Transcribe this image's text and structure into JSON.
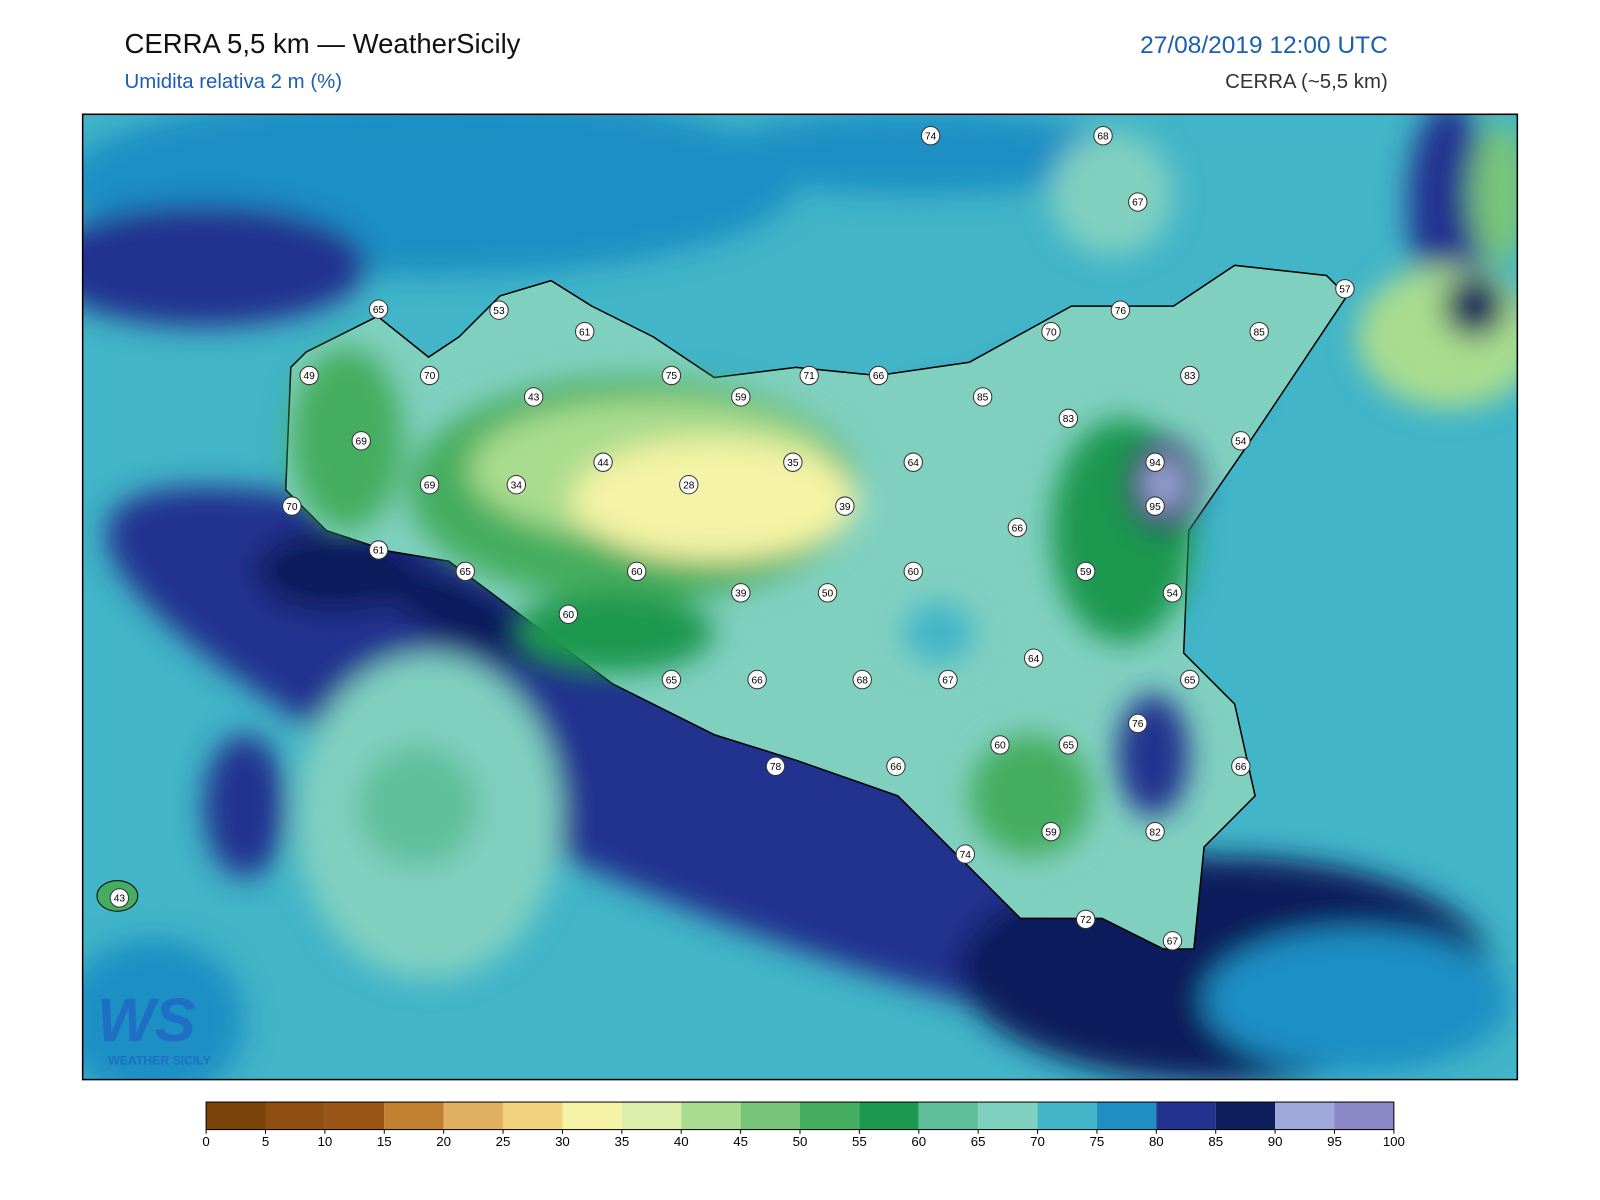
{
  "header": {
    "title": "CERRA 5,5 km — WeatherSicily",
    "subtitle": "Umidita relativa 2 m (%)",
    "datetime": "27/08/2019 12:00 UTC",
    "model": "CERRA (~5,5 km)"
  },
  "logo": {
    "mark": "WS",
    "text": "WEATHER SICILY"
  },
  "stations": [
    74,
    68,
    67,
    65,
    53,
    61,
    57,
    76,
    70,
    85,
    49,
    70,
    75,
    71,
    66,
    59,
    85,
    83,
    83,
    43,
    69,
    54,
    44,
    35,
    64,
    94,
    69,
    34,
    28,
    39,
    95,
    70,
    66,
    61,
    65,
    60,
    60,
    59,
    39,
    50,
    54,
    60,
    64,
    65,
    66,
    68,
    67,
    65,
    76,
    60,
    65,
    78,
    66,
    66,
    59,
    82,
    74,
    43,
    72,
    67
  ],
  "colorbar": {
    "ticks": [
      0,
      5,
      10,
      15,
      20,
      25,
      30,
      35,
      40,
      45,
      50,
      55,
      60,
      65,
      70,
      75,
      80,
      85,
      90,
      95,
      100
    ],
    "colors": [
      "#7b420a",
      "#8f4f12",
      "#9a5516",
      "#c08030",
      "#e0b060",
      "#f2d47e",
      "#f5f3a5",
      "#dbeeaa",
      "#a9dc8e",
      "#78c479",
      "#45ad5f",
      "#1c9850",
      "#5fbf9b",
      "#80d0c0",
      "#42b5c8",
      "#1f8fc4",
      "#23338f",
      "#0c1f5c",
      "#9fa8db",
      "#8c88c8"
    ]
  }
}
